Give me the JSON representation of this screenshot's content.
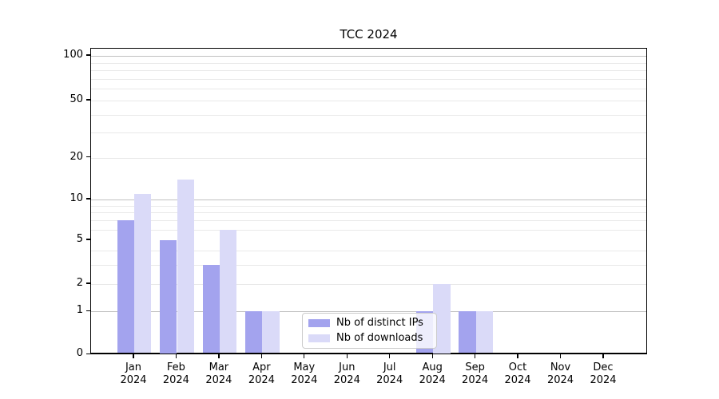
{
  "window": {
    "title": "TCC 2024"
  },
  "chart_data": {
    "type": "bar",
    "title": "TCC 2024",
    "categories": [
      "Jan 2024",
      "Feb 2024",
      "Mar 2024",
      "Apr 2024",
      "May 2024",
      "Jun 2024",
      "Jul 2024",
      "Aug 2024",
      "Sep 2024",
      "Oct 2024",
      "Nov 2024",
      "Dec 2024"
    ],
    "series": [
      {
        "name": "Nb of distinct IPs",
        "color": "#a3a3ee",
        "values": [
          7,
          5,
          3,
          1,
          0,
          0,
          0,
          1,
          1,
          0,
          0,
          0
        ]
      },
      {
        "name": "Nb of downloads",
        "color": "#dadaf8",
        "values": [
          11,
          14,
          6,
          1,
          0,
          0,
          0,
          2,
          1,
          0,
          0,
          0
        ]
      }
    ],
    "xlabel": "",
    "ylabel": "",
    "yticks": [
      0,
      1,
      2,
      5,
      10,
      20,
      50,
      100
    ],
    "yscale": "log-like (compressed near 0, ticks 0/1/2/5/10/20/50/100)",
    "ylim": [
      0,
      112
    ],
    "grid": true,
    "minor_gridline_values": [
      2,
      3,
      4,
      6,
      7,
      8,
      9,
      20,
      30,
      40,
      50,
      60,
      70,
      80,
      90
    ],
    "emphasized_gridline_values": [
      1,
      10,
      100
    ],
    "legend": {
      "position": "inside bottom-center",
      "items": [
        "Nb of distinct IPs",
        "Nb of downloads"
      ]
    }
  }
}
